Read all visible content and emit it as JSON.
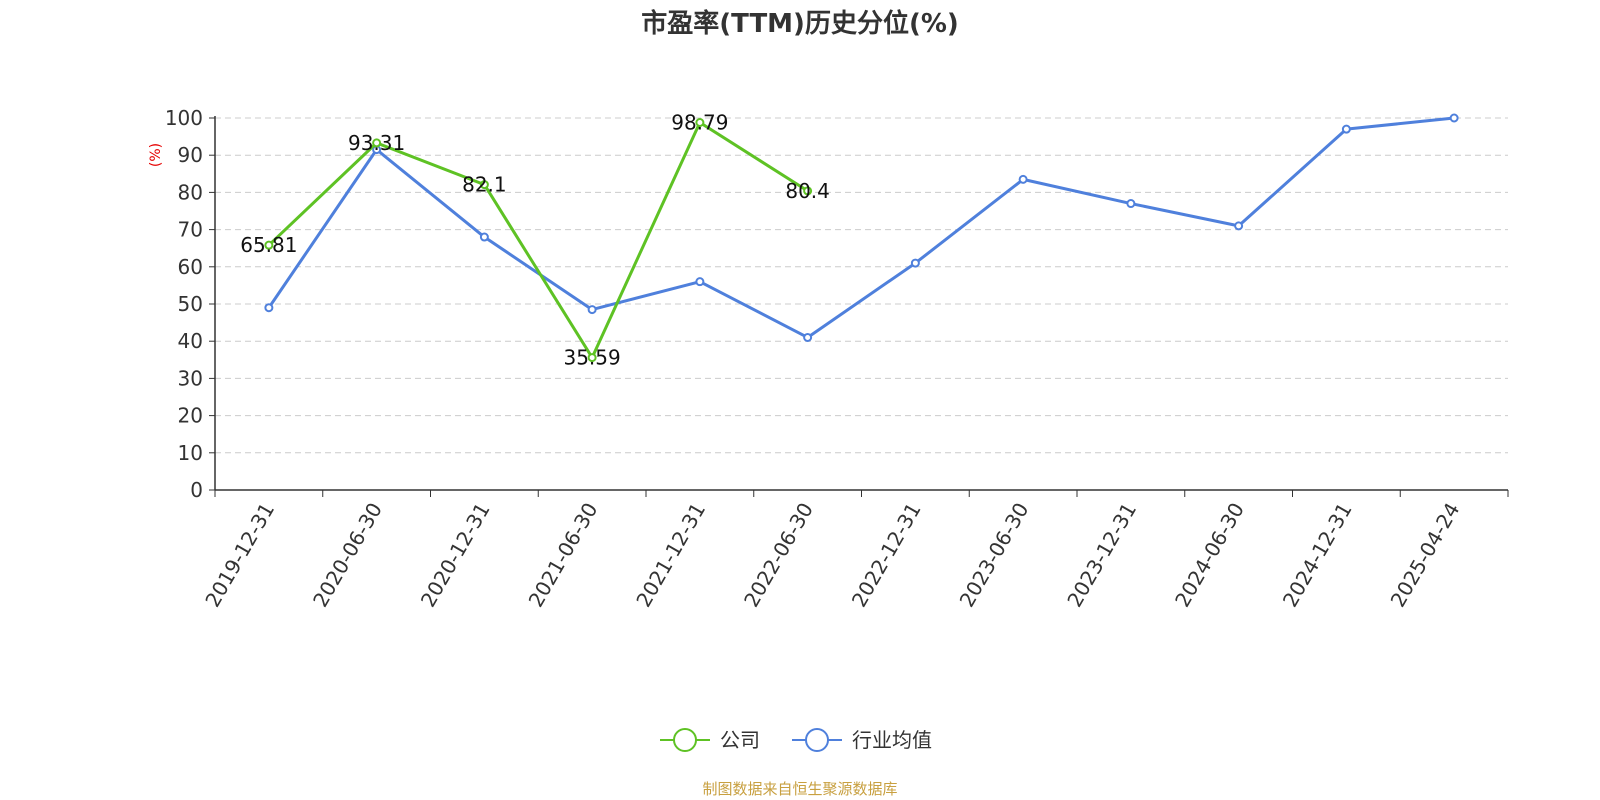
{
  "chart_data": {
    "type": "line",
    "title": "市盈率(TTM)历史分位(%)",
    "ylabel": "(%)",
    "ylim": [
      0,
      100
    ],
    "yticks": [
      0,
      10,
      20,
      30,
      40,
      50,
      60,
      70,
      80,
      90,
      100
    ],
    "grid": true,
    "legend_position": "bottom-center",
    "categories": [
      "2019-12-31",
      "2020-06-30",
      "2020-12-31",
      "2021-06-30",
      "2021-12-31",
      "2022-06-30",
      "2022-12-31",
      "2023-06-30",
      "2023-12-31",
      "2024-06-30",
      "2024-12-31",
      "2025-04-24"
    ],
    "series": [
      {
        "name": "公司",
        "color": "#5ec224",
        "values": [
          65.81,
          93.31,
          82.1,
          35.59,
          98.79,
          80.4,
          null,
          null,
          null,
          null,
          null,
          null
        ],
        "labels": [
          "65.81",
          "93.31",
          "82.1",
          "35.59",
          "98.79",
          "80.4",
          null,
          null,
          null,
          null,
          null,
          null
        ]
      },
      {
        "name": "行业均值",
        "color": "#4f80dc",
        "values": [
          49,
          91.5,
          68,
          48.5,
          56,
          41,
          61,
          83.5,
          77,
          71,
          97,
          100
        ]
      }
    ]
  },
  "source": "制图数据来自恒生聚源数据库"
}
